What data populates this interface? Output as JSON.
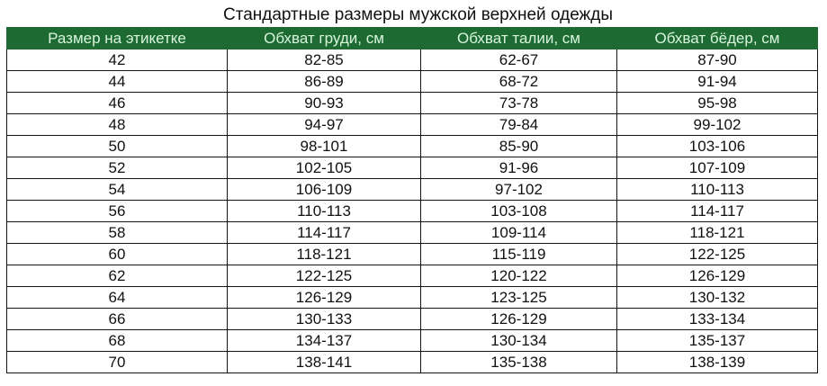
{
  "title": "Стандартные размеры мужской верхней одежды",
  "colors": {
    "header_bg": "#1d6b33",
    "header_text": "#d8f5dc"
  },
  "headers": [
    "Размер на этикетке",
    "Обхват груди, см",
    "Обхват талии, см",
    "Обхват бёдер, см"
  ],
  "rows": [
    [
      "42",
      "82-85",
      "62-67",
      "87-90"
    ],
    [
      "44",
      "86-89",
      "68-72",
      "91-94"
    ],
    [
      "46",
      "90-93",
      "73-78",
      "95-98"
    ],
    [
      "48",
      "94-97",
      "79-84",
      "99-102"
    ],
    [
      "50",
      "98-101",
      "85-90",
      "103-106"
    ],
    [
      "52",
      "102-105",
      "91-96",
      "107-109"
    ],
    [
      "54",
      "106-109",
      "97-102",
      "110-113"
    ],
    [
      "56",
      "110-113",
      "103-108",
      "114-117"
    ],
    [
      "58",
      "114-117",
      "109-114",
      "118-121"
    ],
    [
      "60",
      "118-121",
      "115-119",
      "122-125"
    ],
    [
      "62",
      "122-125",
      "120-122",
      "126-129"
    ],
    [
      "64",
      "126-129",
      "123-125",
      "130-132"
    ],
    [
      "66",
      "130-133",
      "126-129",
      "133-134"
    ],
    [
      "68",
      "134-137",
      "130-134",
      "135-137"
    ],
    [
      "70",
      "138-141",
      "135-138",
      "138-139"
    ]
  ]
}
